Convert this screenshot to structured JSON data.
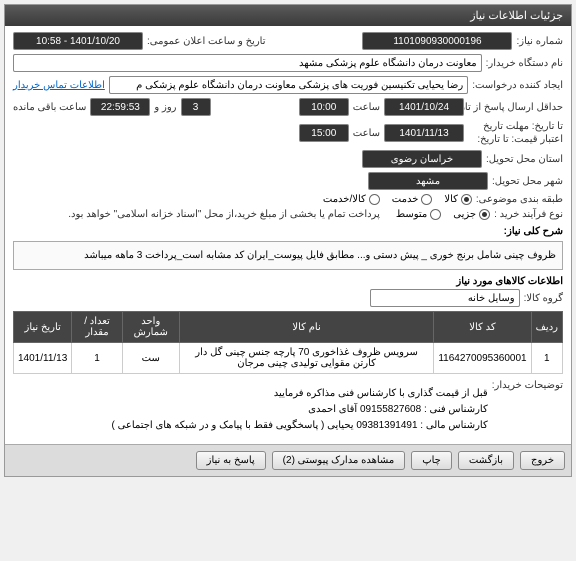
{
  "panel_title": "جزئیات اطلاعات نیاز",
  "labels": {
    "need_no": "شماره نیاز:",
    "announce_dt": "تاریخ و ساعت اعلان عمومی:",
    "buyer_org": "نام دستگاه خریدار:",
    "creator": "ایجاد کننده درخواست:",
    "deadline": "حداقل ارسال پاسخ از تاریخ:",
    "validity": "تا تاریخ:\nمهلت تاریخ اعتبار قیمت: تا تاریخ:",
    "province": "استان محل تحویل:",
    "city": "شهر محل تحویل:",
    "category": "طبقه بندی موضوعی:",
    "buy_type": "نوع فرآیند خرید :",
    "desc_title": "شرح کلی نیاز:",
    "goods_info": "اطلاعات کالاهای مورد نیاز",
    "goods_group": "گروه کالا:",
    "buyer_notes": "توضیحات خریدار:",
    "contact_info": "اطلاعات تماس خریدار",
    "time_label": "ساعت",
    "day_label": "روز و",
    "remaining": "ساعت باقی مانده"
  },
  "values": {
    "need_no": "1101090930000196",
    "announce_dt": "1401/10/20 - 10:58",
    "buyer_org": "معاونت درمان دانشگاه علوم پزشکی مشهد",
    "creator": "رضا یحیایی تکنیسین فوریت های پزشکی معاونت درمان دانشگاه علوم پزشکی م",
    "deadline_date": "1401/10/24",
    "deadline_time": "10:00",
    "days_left": "3",
    "hours_left": "22:59:53",
    "validity_date": "1401/11/13",
    "validity_time": "15:00",
    "province": "خراسان رضوی",
    "city": "مشهد",
    "goods_group": "وسایل خانه"
  },
  "radios": {
    "category": [
      {
        "label": "کالا",
        "checked": true
      },
      {
        "label": "خدمت",
        "checked": false
      },
      {
        "label": "کالا/خدمت",
        "checked": false
      }
    ],
    "buy_type": [
      {
        "label": "جزیی",
        "checked": true
      },
      {
        "label": "متوسط",
        "checked": false
      }
    ]
  },
  "buy_type_note": "پرداخت تمام یا بخشی از مبلغ خرید،از محل \"اسناد خزانه اسلامی\" خواهد بود.",
  "description": "ظروف چینی شامل برنج خوری _ پیش دستی و... مطابق فایل پیوست_ایران کد مشابه است_پرداخت 3 ماهه میباشد",
  "table": {
    "headers": [
      "ردیف",
      "کد کالا",
      "نام کالا",
      "واحد شمارش",
      "تعداد / مقدار",
      "تاریخ نیاز"
    ],
    "rows": [
      [
        "1",
        "1164270095360001",
        "سرویس ظروف غذاخوری 70 پارچه جنس چینی گل دار کارتن مقوایی تولیدی چینی مرجان",
        "ست",
        "1",
        "1401/11/13"
      ]
    ]
  },
  "footer_lines": [
    "قبل از قیمت گذاری با کارشناس فنی مذاکره فرمایید",
    "کارشناس فنی : 09155827608 آقای احمدی",
    "کارشناس مالی : 09381391491 یحیایی ( پاسخگویی فقط با پیامک و در شبکه های اجتماعی )"
  ],
  "buttons": {
    "reply": "پاسخ به نیاز",
    "attachments": "مشاهده مدارک پیوستی (2)",
    "print": "چاپ",
    "close": "بازگشت",
    "exit": "خروج"
  }
}
